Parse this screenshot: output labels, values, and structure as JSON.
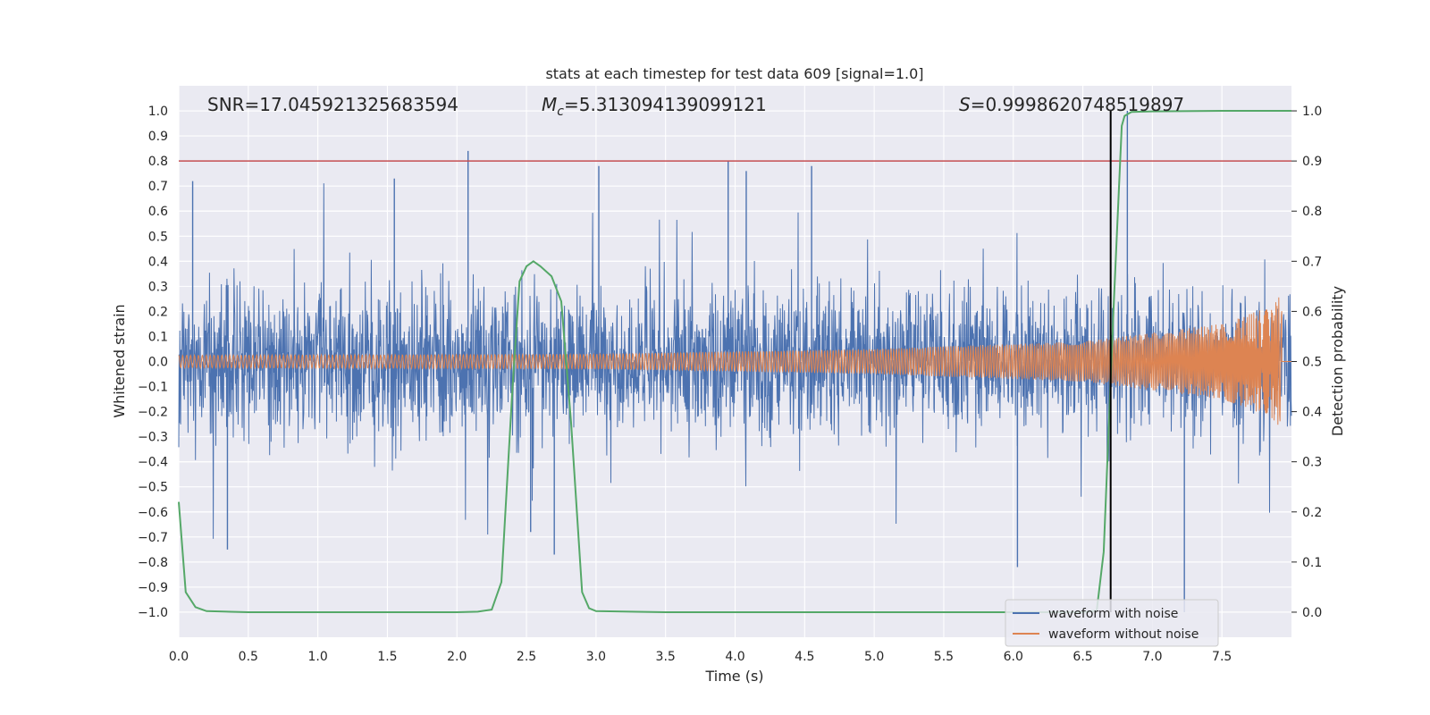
{
  "chart_data": {
    "type": "line",
    "title": "stats at each timestep for test data 609 [signal=1.0]",
    "xlabel": "Time (s)",
    "ylabel": "Whitened strain",
    "y2label": "Detection probability",
    "xlim": [
      0.0,
      8.0
    ],
    "ylim": [
      -1.1,
      1.1
    ],
    "y2lim": [
      -0.05,
      1.05
    ],
    "xticks": [
      "0.0",
      "0.5",
      "1.0",
      "1.5",
      "2.0",
      "2.5",
      "3.0",
      "3.5",
      "4.0",
      "4.5",
      "5.0",
      "5.5",
      "6.0",
      "6.5",
      "7.0",
      "7.5"
    ],
    "yticks": [
      "1.0",
      "0.9",
      "0.8",
      "0.7",
      "0.6",
      "0.5",
      "0.4",
      "0.3",
      "0.2",
      "0.1",
      "0.0",
      "−0.1",
      "−0.2",
      "−0.3",
      "−0.4",
      "−0.5",
      "−0.6",
      "−0.7",
      "−0.8",
      "−0.9",
      "−1.0"
    ],
    "y2ticks": [
      "1.0",
      "0.9",
      "0.8",
      "0.7",
      "0.6",
      "0.5",
      "0.4",
      "0.3",
      "0.2",
      "0.1",
      "0.0"
    ],
    "grid": true,
    "legend_position": "lower-right",
    "annotations": {
      "snr": "SNR=17.045921325683594",
      "mc_symbol": "M",
      "mc_sub": "c",
      "mc_value": "=5.313094139099121",
      "s_symbol": "S",
      "s_value": "=0.9998620748519897"
    },
    "threshold": {
      "value": 0.9,
      "axis": "y2",
      "color": "#c44e52"
    },
    "event_time": 6.7,
    "series": [
      {
        "name": "waveform with noise",
        "color": "#4c72b0",
        "description_noise_amplitude": 0.3,
        "peaks": [
          {
            "t": 0.1,
            "v": 0.72
          },
          {
            "t": 1.55,
            "v": 0.73
          },
          {
            "t": 2.08,
            "v": 0.84
          },
          {
            "t": 3.02,
            "v": 0.78
          },
          {
            "t": 3.95,
            "v": 0.8
          },
          {
            "t": 4.08,
            "v": 0.76
          },
          {
            "t": 4.55,
            "v": 0.78
          },
          {
            "t": 2.53,
            "v": -0.68
          },
          {
            "t": 0.35,
            "v": -0.75
          },
          {
            "t": 2.7,
            "v": -0.77
          },
          {
            "t": 6.03,
            "v": -0.82
          },
          {
            "t": 7.23,
            "v": -1.0
          },
          {
            "t": 6.82,
            "v": 1.0
          }
        ]
      },
      {
        "name": "waveform without noise",
        "color": "#dd8452",
        "envelope": [
          {
            "t": 0.0,
            "amp": 0.025
          },
          {
            "t": 3.0,
            "amp": 0.03
          },
          {
            "t": 5.0,
            "amp": 0.05
          },
          {
            "t": 6.5,
            "amp": 0.08
          },
          {
            "t": 7.5,
            "amp": 0.15
          },
          {
            "t": 7.85,
            "amp": 0.22
          },
          {
            "t": 7.93,
            "amp": 0.27
          }
        ],
        "end_time": 7.93
      },
      {
        "name": "detection probability",
        "color": "#55a868",
        "axis": "y2",
        "t": [
          0.0,
          0.05,
          0.12,
          0.2,
          0.5,
          1.0,
          1.5,
          2.0,
          2.15,
          2.25,
          2.32,
          2.4,
          2.45,
          2.5,
          2.55,
          2.6,
          2.68,
          2.75,
          2.82,
          2.9,
          2.95,
          3.0,
          3.5,
          4.5,
          5.5,
          6.5,
          6.6,
          6.65,
          6.72,
          6.78,
          6.8,
          6.85,
          7.0,
          7.5,
          8.0
        ],
        "p": [
          0.22,
          0.04,
          0.01,
          0.002,
          0.0,
          0.0,
          0.0,
          0.0,
          0.001,
          0.005,
          0.06,
          0.45,
          0.66,
          0.69,
          0.7,
          0.69,
          0.67,
          0.62,
          0.38,
          0.04,
          0.008,
          0.002,
          0.0,
          0.0,
          0.0,
          0.0,
          0.003,
          0.12,
          0.6,
          0.97,
          0.99,
          0.998,
          0.999,
          1.0,
          1.0
        ]
      }
    ]
  }
}
